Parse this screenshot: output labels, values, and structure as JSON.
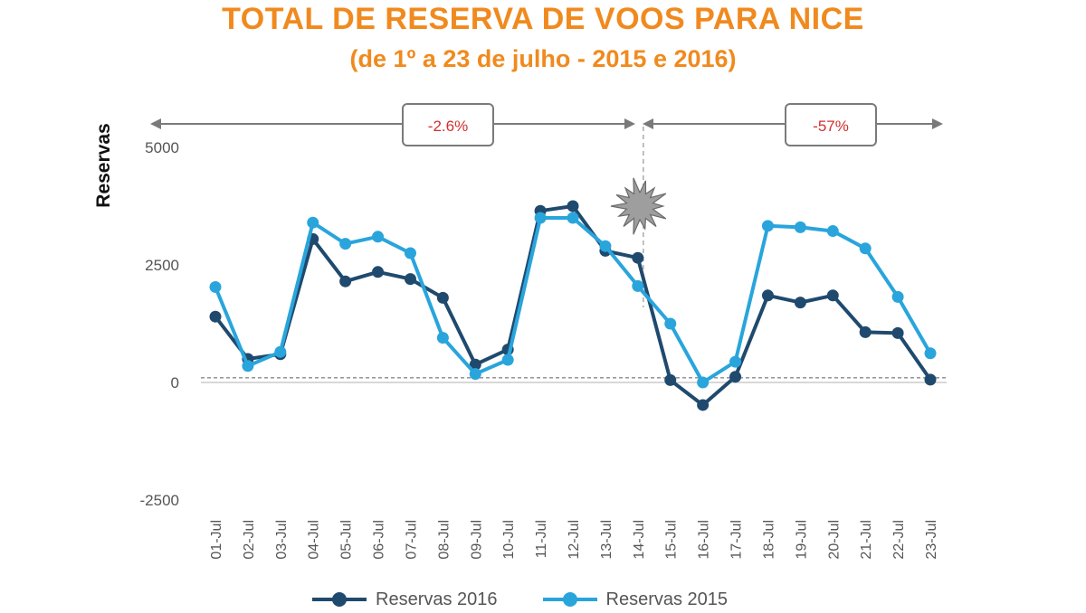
{
  "title": "TOTAL DE RESERVA DE VOOS PARA NICE",
  "subtitle": "(de 1º a 23 de julho - 2015 e 2016)",
  "colors": {
    "title": "#f08a1e",
    "series_2016": "#1f4a6e",
    "series_2015": "#29a5dc",
    "annotation_text": "#d32f2f",
    "arrow": "#7a7a7a"
  },
  "chart_data": {
    "type": "line",
    "title": "TOTAL DE RESERVA DE VOOS PARA NICE",
    "subtitle": "(de 1º a 23 de julho - 2015 e 2016)",
    "xlabel": "",
    "ylabel": "Reservas",
    "ylim": [
      -2500,
      5000
    ],
    "yticks": [
      5000,
      2500,
      0,
      -2500
    ],
    "categories": [
      "01-Jul",
      "02-Jul",
      "03-Jul",
      "04-Jul",
      "05-Jul",
      "06-Jul",
      "07-Jul",
      "08-Jul",
      "09-Jul",
      "10-Jul",
      "11-Jul",
      "12-Jul",
      "13-Jul",
      "14-Jul",
      "15-Jul",
      "16-Jul",
      "17-Jul",
      "18-Jul",
      "19-Jul",
      "20-Jul",
      "21-Jul",
      "22-Jul",
      "23-Jul"
    ],
    "series": [
      {
        "name": "Reservas 2016",
        "color": "#1f4a6e",
        "values": [
          1400,
          500,
          600,
          3050,
          2150,
          2350,
          2200,
          1800,
          380,
          700,
          3650,
          3750,
          2800,
          2650,
          50,
          -480,
          120,
          1850,
          1700,
          1850,
          1070,
          1050,
          60
        ]
      },
      {
        "name": "Reservas 2015",
        "color": "#29a5dc",
        "values": [
          2030,
          350,
          650,
          3400,
          2950,
          3100,
          2750,
          950,
          180,
          480,
          3500,
          3500,
          2900,
          2050,
          1250,
          0,
          440,
          3330,
          3300,
          3220,
          2850,
          1820,
          620
        ]
      }
    ],
    "baseline": 100,
    "event_after_category": "14-Jul",
    "annotations": [
      {
        "label": "-2.6%",
        "range": [
          "01-Jul",
          "14-Jul"
        ]
      },
      {
        "label": "-57%",
        "range": [
          "14-Jul",
          "23-Jul"
        ]
      }
    ],
    "legend": "bottom-center"
  }
}
